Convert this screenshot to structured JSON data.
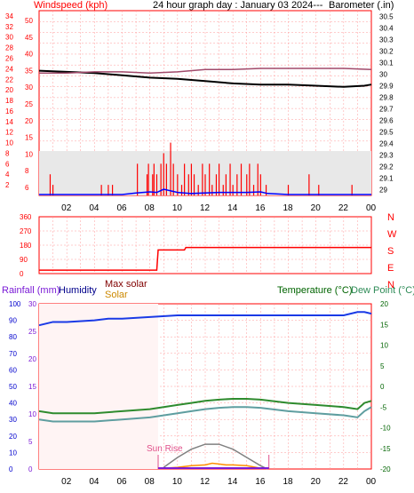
{
  "header": {
    "left_label": "Windspeed (kph)",
    "title": "24 hour graph day : January 03 2024---",
    "right_label": "Barometer (.in)"
  },
  "x_ticks": [
    "02",
    "04",
    "06",
    "08",
    "10",
    "12",
    "14",
    "16",
    "18",
    "20",
    "22",
    "00"
  ],
  "chart_data": [
    {
      "type": "line",
      "title": "24 hour graph day : January 03 2024---",
      "left_axis": {
        "label": "Windspeed (kph)",
        "ticks": [
          "2",
          "4",
          "6",
          "8",
          "10",
          "12",
          "14",
          "16",
          "18",
          "20",
          "22",
          "24",
          "26",
          "28",
          "30",
          "32",
          "34"
        ],
        "ylim": [
          0,
          35
        ]
      },
      "inner_axis": {
        "ticks": [
          "6",
          "8",
          "10",
          "15",
          "20",
          "25",
          "30",
          "35",
          "40",
          "45",
          "50"
        ]
      },
      "right_axis": {
        "label": "Barometer (.in)",
        "ticks": [
          "29",
          "29.1",
          "29.2",
          "29.3",
          "29.4",
          "29.5",
          "29.6",
          "29.7",
          "29.8",
          "29.9",
          "30",
          "30.1",
          "30.2",
          "30.3",
          "30.4",
          "30.5"
        ],
        "ylim": [
          28.95,
          30.55
        ]
      },
      "series": [
        {
          "name": "Barometer",
          "color": "#000000",
          "x": [
            0,
            2,
            4,
            6,
            8,
            10,
            12,
            14,
            16,
            18,
            20,
            22,
            23.5,
            24
          ],
          "y": [
            30.03,
            30.02,
            30.01,
            29.99,
            29.97,
            29.96,
            29.94,
            29.92,
            29.91,
            29.91,
            29.9,
            29.89,
            29.9,
            29.91
          ]
        },
        {
          "color": "#a24a6b",
          "x": [
            0,
            2,
            4,
            6,
            8,
            10,
            12,
            14,
            16,
            18,
            20,
            22,
            24
          ],
          "y": [
            30.01,
            30.01,
            30.02,
            30.02,
            30.01,
            30.02,
            30.04,
            30.04,
            30.05,
            30.05,
            30.05,
            30.05,
            30.04
          ]
        }
      ],
      "gust_bars": {
        "color": "#ff0000",
        "x": [
          0.8,
          1.0,
          4.5,
          5.0,
          5.3,
          7.1,
          7.8,
          7.9,
          8.2,
          8.3,
          8.5,
          8.8,
          9.0,
          9.2,
          9.5,
          9.7,
          10.0,
          10.3,
          10.5,
          10.8,
          11.0,
          11.2,
          11.5,
          11.8,
          12.0,
          12.3,
          12.5,
          12.8,
          13.0,
          13.3,
          13.5,
          13.8,
          14.0,
          14.3,
          14.6,
          15.0,
          15.2,
          15.5,
          15.8,
          16.0,
          16.4,
          18.0,
          19.5,
          20.2,
          22.6
        ],
        "values": [
          4,
          2,
          2,
          2,
          2,
          6,
          4,
          6,
          4,
          6,
          4,
          6,
          8,
          6,
          10,
          6,
          4,
          2,
          6,
          4,
          6,
          4,
          2,
          6,
          4,
          6,
          2,
          4,
          6,
          2,
          4,
          6,
          2,
          4,
          6,
          4,
          6,
          2,
          6,
          4,
          2,
          2,
          4,
          2,
          2
        ]
      },
      "avg_series": {
        "color": "#0000ff",
        "x": [
          0,
          6,
          7,
          8,
          8.5,
          9,
          10,
          11,
          13,
          15,
          16,
          16.5,
          18,
          24
        ],
        "y": [
          0,
          0,
          0.3,
          0.5,
          0.4,
          1.0,
          0.4,
          0.2,
          0.4,
          0.4,
          0.5,
          0.2,
          0,
          0
        ]
      }
    },
    {
      "type": "line",
      "right_labels": [
        "N",
        "W",
        "S",
        "E",
        "N"
      ],
      "left_axis": {
        "ticks": [
          "360",
          "270",
          "180",
          "90",
          "0"
        ],
        "ylim": [
          0,
          360
        ]
      },
      "series": [
        {
          "color": "#ff0000",
          "x": [
            0,
            8.5,
            8.6,
            10.5,
            10.6,
            24
          ],
          "y": [
            22,
            22,
            150,
            150,
            165,
            165
          ]
        }
      ]
    },
    {
      "type": "line",
      "labels": {
        "rainfall": "Rainfall (mm)",
        "humidity": "Humidity",
        "max_solar": "Max solar",
        "solar": "Solar",
        "temperature": "Temperature (°C)",
        "dew_point": "Dew Point (°C)",
        "sunrise": "Sun Rise"
      },
      "colors": {
        "rainfall": "#7a1ad6",
        "humidity": "#00008b",
        "max_solar": "#800000",
        "solar": "#cc8800",
        "temperature": "#006400",
        "dew_point": "#2e8b57"
      },
      "humidity_axis": {
        "ticks": [
          "100",
          "90",
          "80",
          "70",
          "60",
          "50",
          "40",
          "30",
          "20",
          "10",
          "0"
        ],
        "ylim": [
          0,
          100
        ]
      },
      "rain_axis": {
        "ticks": [
          "30",
          "25",
          "20",
          "15",
          "10",
          "5",
          "0"
        ]
      },
      "temp_axis": {
        "ticks": [
          "20",
          "15",
          "10",
          "5",
          "0",
          "-5",
          "-10",
          "-15",
          "-20"
        ],
        "ylim": [
          -20,
          20
        ]
      },
      "series": [
        {
          "name": "Humidity",
          "color": "#1a3ae6",
          "x": [
            0,
            0.5,
            1,
            2,
            4,
            5,
            6,
            8,
            10,
            12,
            14,
            16,
            18,
            20,
            21.5,
            22,
            23,
            23.5,
            24
          ],
          "y": [
            87,
            88,
            89,
            89,
            90,
            91,
            91,
            92,
            93,
            93,
            93,
            93,
            93,
            93,
            93,
            93,
            95,
            95,
            94
          ]
        },
        {
          "name": "Temperature (°C)",
          "color": "#2e8b2e",
          "x": [
            0,
            1,
            2,
            4,
            6,
            8,
            10,
            11,
            12,
            13,
            14,
            15,
            16,
            18,
            20,
            22,
            23,
            23.5,
            24
          ],
          "y": [
            -6,
            -6.5,
            -6.5,
            -6.5,
            -6,
            -5.5,
            -4.5,
            -4,
            -3.5,
            -3.2,
            -3,
            -3,
            -3.2,
            -4,
            -4.5,
            -5,
            -5.5,
            -4,
            -3.5
          ]
        },
        {
          "name": "Dew Point (°C)",
          "color": "#5f9ea0",
          "x": [
            0,
            1,
            2,
            4,
            6,
            8,
            10,
            11,
            12,
            13,
            14,
            15,
            16,
            18,
            20,
            22,
            23,
            23.5,
            24
          ],
          "y": [
            -8,
            -8.5,
            -8.5,
            -8.5,
            -8,
            -7.5,
            -6.5,
            -6,
            -5.5,
            -5.2,
            -5,
            -5,
            -5.2,
            -6,
            -6.5,
            -7,
            -7.5,
            -6,
            -5
          ]
        },
        {
          "name": "Max solar",
          "color": "#808080",
          "x": [
            9,
            10,
            11,
            12,
            13,
            14,
            15,
            16,
            16.5
          ],
          "y": [
            1,
            7,
            12,
            15,
            15,
            12,
            7,
            2,
            0
          ]
        },
        {
          "name": "Solar",
          "color": "#ff8c00",
          "x": [
            9,
            10,
            11,
            12,
            12.5,
            13,
            13.5,
            14,
            15,
            16
          ],
          "y": [
            0.5,
            1,
            2,
            2.5,
            3.5,
            3,
            2.5,
            2.5,
            2,
            0.5
          ]
        }
      ],
      "sunrise_hour": 8.6,
      "sunset_hour": 16.6
    }
  ]
}
